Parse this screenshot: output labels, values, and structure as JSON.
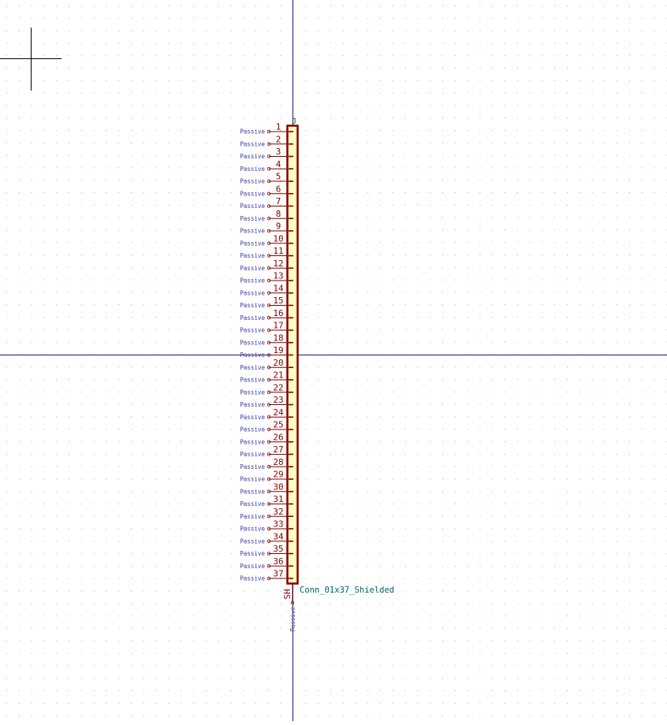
{
  "editor": {
    "background_color": "#ffffff",
    "grid_color": "#a8a8a8",
    "axis_color": "#1a1a6e",
    "cursor_color": "#000000"
  },
  "symbol": {
    "name": "Conn_01x37_Shielded",
    "reference_mark": "J",
    "body_fill": "#ffffc2",
    "body_stroke": "#840000",
    "pin_color": "#840000",
    "pin_number_color": "#840000",
    "pin_type_color": "#3a3aa8",
    "name_color": "#006464",
    "pins": [
      {
        "number": "1",
        "type": "Passive"
      },
      {
        "number": "2",
        "type": "Passive"
      },
      {
        "number": "3",
        "type": "Passive"
      },
      {
        "number": "4",
        "type": "Passive"
      },
      {
        "number": "5",
        "type": "Passive"
      },
      {
        "number": "6",
        "type": "Passive"
      },
      {
        "number": "7",
        "type": "Passive"
      },
      {
        "number": "8",
        "type": "Passive"
      },
      {
        "number": "9",
        "type": "Passive"
      },
      {
        "number": "10",
        "type": "Passive"
      },
      {
        "number": "11",
        "type": "Passive"
      },
      {
        "number": "12",
        "type": "Passive"
      },
      {
        "number": "13",
        "type": "Passive"
      },
      {
        "number": "14",
        "type": "Passive"
      },
      {
        "number": "15",
        "type": "Passive"
      },
      {
        "number": "16",
        "type": "Passive"
      },
      {
        "number": "17",
        "type": "Passive"
      },
      {
        "number": "18",
        "type": "Passive"
      },
      {
        "number": "19",
        "type": "Passive"
      },
      {
        "number": "20",
        "type": "Passive"
      },
      {
        "number": "21",
        "type": "Passive"
      },
      {
        "number": "22",
        "type": "Passive"
      },
      {
        "number": "23",
        "type": "Passive"
      },
      {
        "number": "24",
        "type": "Passive"
      },
      {
        "number": "25",
        "type": "Passive"
      },
      {
        "number": "26",
        "type": "Passive"
      },
      {
        "number": "27",
        "type": "Passive"
      },
      {
        "number": "28",
        "type": "Passive"
      },
      {
        "number": "29",
        "type": "Passive"
      },
      {
        "number": "30",
        "type": "Passive"
      },
      {
        "number": "31",
        "type": "Passive"
      },
      {
        "number": "32",
        "type": "Passive"
      },
      {
        "number": "33",
        "type": "Passive"
      },
      {
        "number": "34",
        "type": "Passive"
      },
      {
        "number": "35",
        "type": "Passive"
      },
      {
        "number": "36",
        "type": "Passive"
      },
      {
        "number": "37",
        "type": "Passive"
      }
    ],
    "shield_pin": {
      "number": "SH",
      "type": "Passive"
    }
  }
}
